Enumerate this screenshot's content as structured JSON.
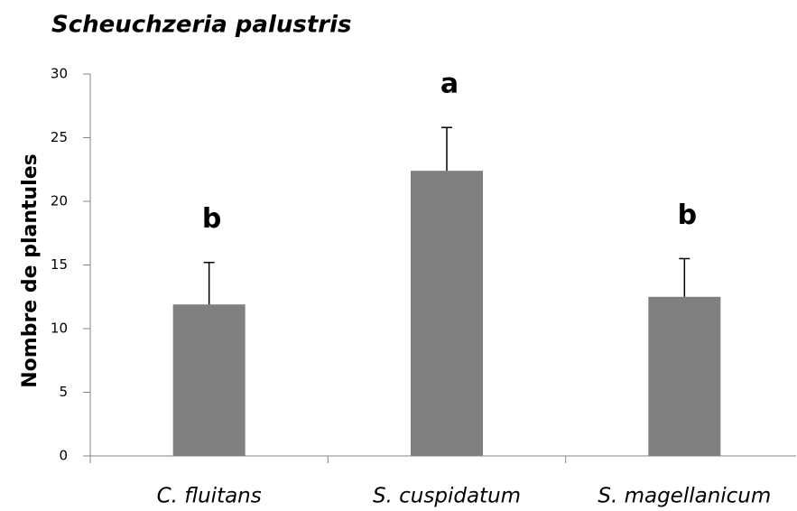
{
  "chart_data": {
    "type": "bar",
    "title": "Scheuchzeria palustris",
    "ylabel": "Nombre de plantules",
    "categories": [
      "C. fluitans",
      "S. cuspidatum",
      "S. magellanicum"
    ],
    "values": [
      11.9,
      22.4,
      12.5
    ],
    "errors": [
      3.3,
      3.4,
      3.0
    ],
    "annotations": [
      "b",
      "a",
      "b"
    ],
    "color": "#808080",
    "ylim": [
      0,
      30
    ],
    "yticks": [
      0,
      5,
      10,
      15,
      20,
      25,
      30
    ],
    "grid": false
  }
}
